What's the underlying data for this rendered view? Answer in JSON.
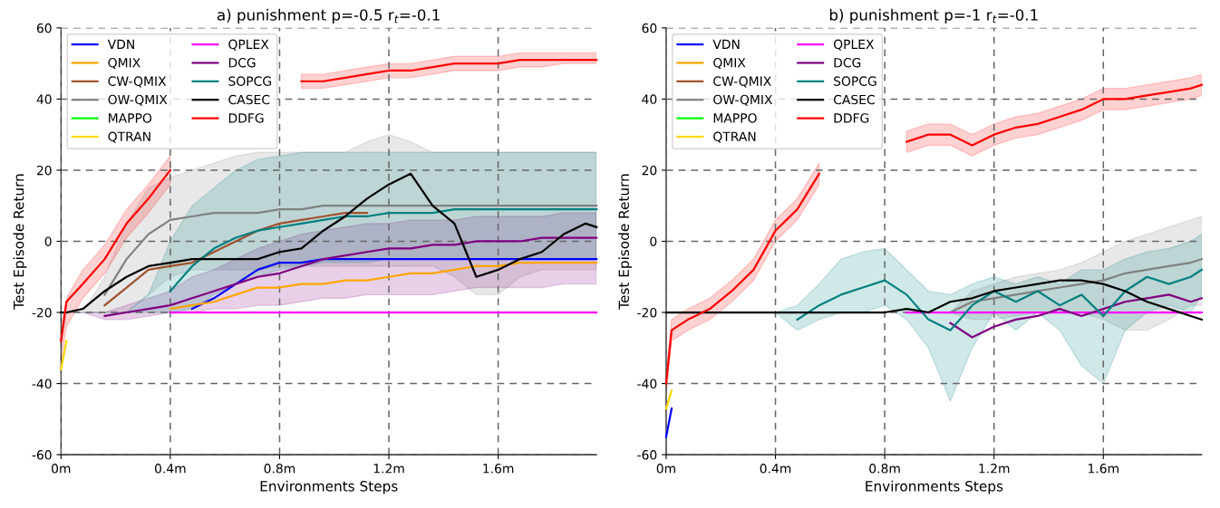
{
  "chart_data": [
    {
      "type": "line",
      "title": "a) punishment p=-0.5 r$_{t}$=-0.1",
      "xlabel": "Environments Steps",
      "ylabel": "Test Episode Return",
      "x": [
        0,
        0.02,
        0.08,
        0.16,
        0.24,
        0.32,
        0.4,
        0.48,
        0.56,
        0.64,
        0.72,
        0.8,
        0.88,
        0.96,
        1.04,
        1.12,
        1.2,
        1.28,
        1.36,
        1.44,
        1.52,
        1.6,
        1.68,
        1.76,
        1.84,
        1.92,
        1.96
      ],
      "xlim": [
        0,
        1.96
      ],
      "xticks": [
        {
          "value": 0,
          "label": "0m"
        },
        {
          "value": 0.4,
          "label": "0.4m"
        },
        {
          "value": 0.8,
          "label": "0.8m"
        },
        {
          "value": 1.2,
          "label": "1.2m"
        },
        {
          "value": 1.6,
          "label": "1.6m"
        }
      ],
      "ylim": [
        -60,
        60
      ],
      "yticks": [
        -60,
        -40,
        -20,
        0,
        20,
        40,
        60
      ],
      "grid": true,
      "legend": "top left",
      "line_style": "solid",
      "series": [
        {
          "name": "VDN",
          "color": "#0000ff",
          "values": [
            null,
            null,
            null,
            null,
            null,
            null,
            null,
            -19,
            -16,
            -12,
            -8,
            -6,
            -6,
            -5,
            -5,
            -5,
            -5,
            -5,
            -5,
            -5,
            -5,
            -5,
            -5,
            -5,
            -5,
            -5,
            -5
          ]
        },
        {
          "name": "QMIX",
          "color": "#ffa500",
          "values": [
            null,
            null,
            null,
            null,
            null,
            null,
            -19,
            -18,
            -17,
            -15,
            -13,
            -13,
            -12,
            -12,
            -11,
            -11,
            -10,
            -9,
            -9,
            -8,
            -7,
            -7,
            -6,
            -6,
            -6,
            -6,
            -6
          ]
        },
        {
          "name": "CW-QMIX",
          "color": "#a0522d",
          "values": [
            null,
            null,
            null,
            -18,
            -13,
            -8,
            -7,
            -6,
            -3,
            0,
            3,
            5,
            6,
            7,
            8,
            8,
            null,
            null,
            null,
            null,
            null,
            null,
            null,
            null,
            null,
            null,
            null
          ]
        },
        {
          "name": "OW-QMIX",
          "color": "#808080",
          "values": [
            null,
            null,
            null,
            -15,
            -5,
            2,
            6,
            7,
            8,
            8,
            8,
            9,
            9,
            10,
            10,
            10,
            10,
            10,
            10,
            10,
            10,
            10,
            10,
            10,
            10,
            10,
            10
          ],
          "lower": [
            -30,
            -20,
            -20,
            -20,
            -20,
            -15,
            -10,
            -8,
            -8,
            -8,
            -8,
            -7,
            -7,
            -7,
            -7,
            -7,
            -7,
            -7,
            -7,
            -10,
            -15,
            -15,
            -10,
            -8,
            -8,
            -8,
            -8
          ],
          "upper": [
            -20,
            -20,
            -20,
            -10,
            5,
            15,
            18,
            20,
            22,
            24,
            25,
            25,
            25,
            25,
            25,
            28,
            30,
            28,
            25,
            25,
            25,
            25,
            25,
            25,
            25,
            25,
            25
          ]
        },
        {
          "name": "MAPPO",
          "color": "#00ff00",
          "values": [
            null,
            null,
            null,
            null,
            null,
            null,
            null,
            null,
            null,
            null,
            null,
            null,
            null,
            null,
            null,
            null,
            null,
            null,
            null,
            null,
            null,
            null,
            null,
            null,
            null,
            null,
            null
          ]
        },
        {
          "name": "QTRAN",
          "color": "#ffd700",
          "values": [
            -36,
            -28,
            null,
            null,
            null,
            null,
            null,
            null,
            null,
            null,
            null,
            null,
            null,
            null,
            null,
            null,
            null,
            null,
            null,
            null,
            null,
            null,
            null,
            null,
            null,
            null,
            null
          ]
        },
        {
          "name": "QPLEX",
          "color": "#ff00ff",
          "values": [
            null,
            null,
            null,
            null,
            null,
            null,
            -20,
            -20,
            -20,
            -20,
            -20,
            -20,
            -20,
            -20,
            -20,
            -20,
            -20,
            -20,
            -20,
            -20,
            -20,
            -20,
            -20,
            -20,
            -20,
            -20,
            -20
          ]
        },
        {
          "name": "DCG",
          "color": "#800080",
          "values": [
            null,
            null,
            null,
            -21,
            -20,
            -19,
            -18,
            -16,
            -14,
            -12,
            -10,
            -9,
            -7,
            -5,
            -4,
            -3,
            -2,
            -2,
            -1,
            -1,
            0,
            0,
            0,
            1,
            1,
            1,
            1
          ],
          "lower": [
            -20,
            -20,
            -20,
            -22,
            -22,
            -21,
            -20,
            -20,
            -19,
            -19,
            -18,
            -18,
            -17,
            -16,
            -16,
            -15,
            -15,
            -15,
            -15,
            -14,
            -13,
            -13,
            -13,
            -13,
            -12,
            -12,
            -12
          ],
          "upper": [
            -20,
            -20,
            -20,
            -20,
            -18,
            -16,
            -14,
            -10,
            -8,
            -5,
            -2,
            0,
            2,
            3,
            4,
            5,
            5,
            6,
            6,
            6,
            7,
            7,
            7,
            7,
            8,
            8,
            8
          ]
        },
        {
          "name": "SOPCG",
          "color": "#008080",
          "values": [
            null,
            null,
            null,
            null,
            null,
            null,
            -14,
            -7,
            -2,
            1,
            3,
            4,
            5,
            6,
            7,
            7,
            8,
            8,
            8,
            9,
            9,
            9,
            9,
            9,
            9,
            9,
            9
          ],
          "lower": [
            -20,
            -20,
            -20,
            -20,
            -20,
            -20,
            -20,
            -19,
            -15,
            -12,
            -10,
            -8,
            -7,
            -6,
            -6,
            -6,
            -5,
            -5,
            -5,
            -5,
            -5,
            -5,
            -5,
            -5,
            -5,
            -5,
            -5
          ],
          "upper": [
            -20,
            -20,
            -20,
            -20,
            -20,
            -15,
            0,
            10,
            15,
            20,
            23,
            24,
            25,
            25,
            25,
            25,
            25,
            25,
            25,
            25,
            25,
            25,
            25,
            25,
            25,
            25,
            25
          ]
        },
        {
          "name": "CASEC",
          "color": "#000000",
          "values": [
            -20,
            -20,
            -19,
            -14,
            -10,
            -7,
            -6,
            -5,
            -5,
            -5,
            -5,
            -3,
            -2,
            3,
            7,
            12,
            16,
            19,
            10,
            5,
            -10,
            -8,
            -5,
            -3,
            2,
            5,
            4
          ]
        },
        {
          "name": "DDFG",
          "color": "#ff0000",
          "values": [
            -28,
            -17,
            -12,
            -5,
            5,
            12,
            20,
            null,
            null,
            null,
            null,
            null,
            45,
            45,
            46,
            47,
            48,
            48,
            49,
            50,
            50,
            50,
            51,
            51,
            51,
            51,
            51
          ],
          "lower": [
            -34,
            -24,
            -16,
            -9,
            1,
            8,
            16,
            null,
            null,
            null,
            null,
            null,
            43,
            43,
            44,
            45,
            46,
            46,
            47,
            48,
            48,
            48,
            49,
            49,
            50,
            50,
            50
          ],
          "upper": [
            -26,
            -16,
            -8,
            -1,
            9,
            16,
            24,
            null,
            null,
            null,
            null,
            null,
            47,
            47,
            48,
            49,
            50,
            50,
            51,
            52,
            52,
            52,
            53,
            53,
            53,
            53,
            53
          ]
        }
      ]
    },
    {
      "type": "line",
      "title": "b) punishment p=-1 r$_{t}$=-0.1",
      "xlabel": "Environments Steps",
      "ylabel": "Test Episode Return",
      "x": [
        0,
        0.02,
        0.08,
        0.16,
        0.24,
        0.32,
        0.4,
        0.48,
        0.56,
        0.64,
        0.72,
        0.8,
        0.88,
        0.96,
        1.04,
        1.12,
        1.2,
        1.28,
        1.36,
        1.44,
        1.52,
        1.6,
        1.68,
        1.76,
        1.84,
        1.92,
        1.96
      ],
      "xlim": [
        0,
        1.96
      ],
      "xticks": [
        {
          "value": 0,
          "label": "0m"
        },
        {
          "value": 0.4,
          "label": "0.4m"
        },
        {
          "value": 0.8,
          "label": "0.8m"
        },
        {
          "value": 1.2,
          "label": "1.2m"
        },
        {
          "value": 1.6,
          "label": "1.6m"
        }
      ],
      "ylim": [
        -60,
        60
      ],
      "yticks": [
        -60,
        -40,
        -20,
        0,
        20,
        40,
        60
      ],
      "grid": true,
      "legend": "top left",
      "line_style": "solid",
      "series": [
        {
          "name": "VDN",
          "color": "#0000ff",
          "values": [
            -55,
            -47,
            null,
            null,
            null,
            null,
            null,
            null,
            null,
            null,
            null,
            null,
            null,
            null,
            null,
            null,
            null,
            null,
            null,
            null,
            null,
            null,
            null,
            null,
            null,
            null,
            null
          ]
        },
        {
          "name": "QMIX",
          "color": "#ffa500",
          "values": [
            null,
            null,
            null,
            null,
            null,
            null,
            null,
            null,
            null,
            null,
            null,
            null,
            null,
            null,
            null,
            null,
            null,
            null,
            null,
            null,
            null,
            null,
            null,
            null,
            null,
            null,
            null
          ]
        },
        {
          "name": "CW-QMIX",
          "color": "#a0522d",
          "values": [
            null,
            null,
            null,
            null,
            null,
            null,
            null,
            null,
            null,
            null,
            null,
            null,
            null,
            null,
            null,
            null,
            null,
            null,
            null,
            null,
            null,
            null,
            null,
            null,
            null,
            null,
            null
          ]
        },
        {
          "name": "OW-QMIX",
          "color": "#808080",
          "values": [
            null,
            null,
            null,
            null,
            null,
            null,
            null,
            null,
            null,
            null,
            null,
            null,
            null,
            null,
            -20,
            -17,
            -16,
            -15,
            -14,
            -13,
            -12,
            -11,
            -9,
            -8,
            -7,
            -6,
            -5
          ],
          "lower": [
            null,
            null,
            null,
            null,
            null,
            null,
            null,
            null,
            null,
            null,
            null,
            null,
            null,
            null,
            -20,
            -22,
            -22,
            -21,
            -20,
            -20,
            -20,
            -22,
            -25,
            -25,
            -22,
            -18,
            -18
          ],
          "upper": [
            null,
            null,
            null,
            null,
            null,
            null,
            null,
            null,
            null,
            null,
            null,
            null,
            null,
            null,
            -20,
            -14,
            -12,
            -10,
            -9,
            -8,
            -6,
            -3,
            0,
            2,
            4,
            6,
            7
          ]
        },
        {
          "name": "MAPPO",
          "color": "#00ff00",
          "values": [
            null,
            null,
            null,
            null,
            null,
            null,
            null,
            null,
            null,
            null,
            null,
            null,
            null,
            null,
            null,
            null,
            null,
            null,
            null,
            null,
            null,
            null,
            null,
            null,
            null,
            null,
            null
          ]
        },
        {
          "name": "QTRAN",
          "color": "#ffd700",
          "values": [
            -47,
            -42,
            null,
            null,
            null,
            null,
            null,
            null,
            null,
            null,
            null,
            null,
            null,
            null,
            null,
            null,
            null,
            null,
            null,
            null,
            null,
            null,
            null,
            null,
            null,
            null,
            null
          ]
        },
        {
          "name": "QPLEX",
          "color": "#ff00ff",
          "values": [
            null,
            null,
            null,
            null,
            null,
            null,
            null,
            null,
            null,
            null,
            null,
            null,
            -20,
            -20,
            -20,
            -20,
            -20,
            -20,
            -20,
            -20,
            -20,
            -20,
            -20,
            -20,
            -20,
            -20,
            -20
          ]
        },
        {
          "name": "DCG",
          "color": "#800080",
          "values": [
            null,
            null,
            null,
            null,
            null,
            null,
            null,
            null,
            null,
            null,
            null,
            null,
            null,
            null,
            -23,
            -27,
            -24,
            -22,
            -21,
            -19,
            -21,
            -19,
            -17,
            -16,
            -15,
            -17,
            -16
          ]
        },
        {
          "name": "SOPCG",
          "color": "#008080",
          "values": [
            null,
            null,
            null,
            null,
            null,
            null,
            null,
            -22,
            -18,
            -15,
            -13,
            -11,
            -15,
            -22,
            -25,
            -18,
            -14,
            -17,
            -14,
            -18,
            -15,
            -21,
            -14,
            -10,
            -12,
            -10,
            -8
          ],
          "lower": [
            null,
            null,
            null,
            null,
            null,
            null,
            -20,
            -25,
            -22,
            -20,
            -20,
            -18,
            -22,
            -30,
            -45,
            -30,
            -20,
            -25,
            -20,
            -25,
            -35,
            -40,
            -25,
            -20,
            -18,
            -20,
            -15
          ],
          "upper": [
            null,
            null,
            null,
            null,
            null,
            null,
            -20,
            -18,
            -12,
            -5,
            -3,
            -2,
            -8,
            -14,
            -15,
            -12,
            -10,
            -12,
            -10,
            -12,
            -8,
            -8,
            -5,
            -3,
            -2,
            0,
            2
          ]
        },
        {
          "name": "CASEC",
          "color": "#000000",
          "values": [
            -20,
            -20,
            -20,
            -20,
            -20,
            -20,
            -20,
            -20,
            -20,
            -20,
            -20,
            -20,
            -19,
            -20,
            -17,
            -16,
            -14,
            -13,
            -12,
            -11,
            -11,
            -12,
            -14,
            -17,
            -19,
            -21,
            -22
          ]
        },
        {
          "name": "DDFG",
          "color": "#ff0000",
          "values": [
            -40,
            -25,
            -22,
            -19,
            -14,
            -8,
            3,
            9,
            19,
            null,
            null,
            null,
            28,
            30,
            30,
            27,
            30,
            32,
            33,
            35,
            37,
            40,
            40,
            41,
            42,
            43,
            44
          ],
          "lower": [
            -43,
            -28,
            -25,
            -22,
            -17,
            -11,
            0,
            6,
            16,
            null,
            null,
            null,
            25,
            27,
            27,
            24,
            27,
            29,
            30,
            32,
            34,
            37,
            37,
            38,
            39,
            40,
            41
          ],
          "upper": [
            -37,
            -22,
            -19,
            -16,
            -11,
            -5,
            6,
            12,
            22,
            null,
            null,
            null,
            31,
            33,
            33,
            30,
            33,
            35,
            36,
            38,
            40,
            43,
            43,
            44,
            45,
            46,
            47
          ]
        }
      ]
    }
  ]
}
